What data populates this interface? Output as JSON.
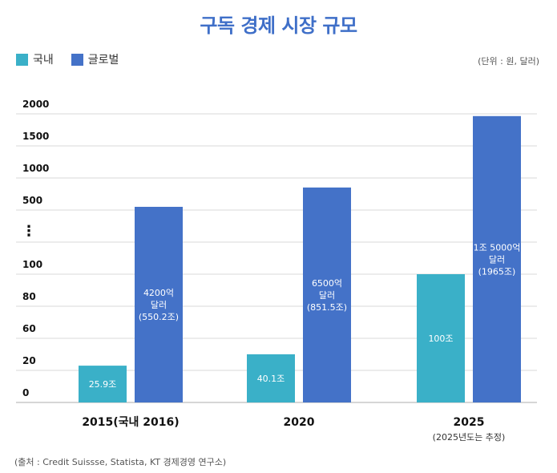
{
  "title": "구독 경제 시장 규모",
  "unit": "(단위 : 원, 달러)",
  "source": "(출처 : Credit Suissse, Statista, KT 경제경영 연구소)",
  "colors": {
    "domestic": "#3ab0c8",
    "global": "#4472c8",
    "title": "#3f6fc8"
  },
  "chart_data": {
    "type": "bar",
    "categories": [
      "2015(국내 2016)",
      "2020",
      "2025"
    ],
    "category_notes": [
      "",
      "",
      "(2025년도는 추정)"
    ],
    "y_ticks": [
      "2000",
      "1500",
      "1000",
      "500",
      "⋮",
      "100",
      "80",
      "60",
      "20",
      "0"
    ],
    "axis_break": true,
    "series": [
      {
        "name": "국내",
        "values": [
          25.9,
          40.1,
          100
        ],
        "unit_note": "조 원",
        "labels": [
          [
            "25.9조"
          ],
          [
            "40.1조"
          ],
          [
            "100조"
          ]
        ]
      },
      {
        "name": "글로벌",
        "values": [
          550.2,
          851.5,
          1965
        ],
        "unit_note": "조 원",
        "labels": [
          [
            "4200억",
            "달러",
            "(550.2조)"
          ],
          [
            "6500억",
            "달러",
            "(851.5조)"
          ],
          [
            "1조 5000억",
            "달러",
            "(1965조)"
          ]
        ]
      }
    ],
    "legend": "top-left",
    "grid": true
  }
}
